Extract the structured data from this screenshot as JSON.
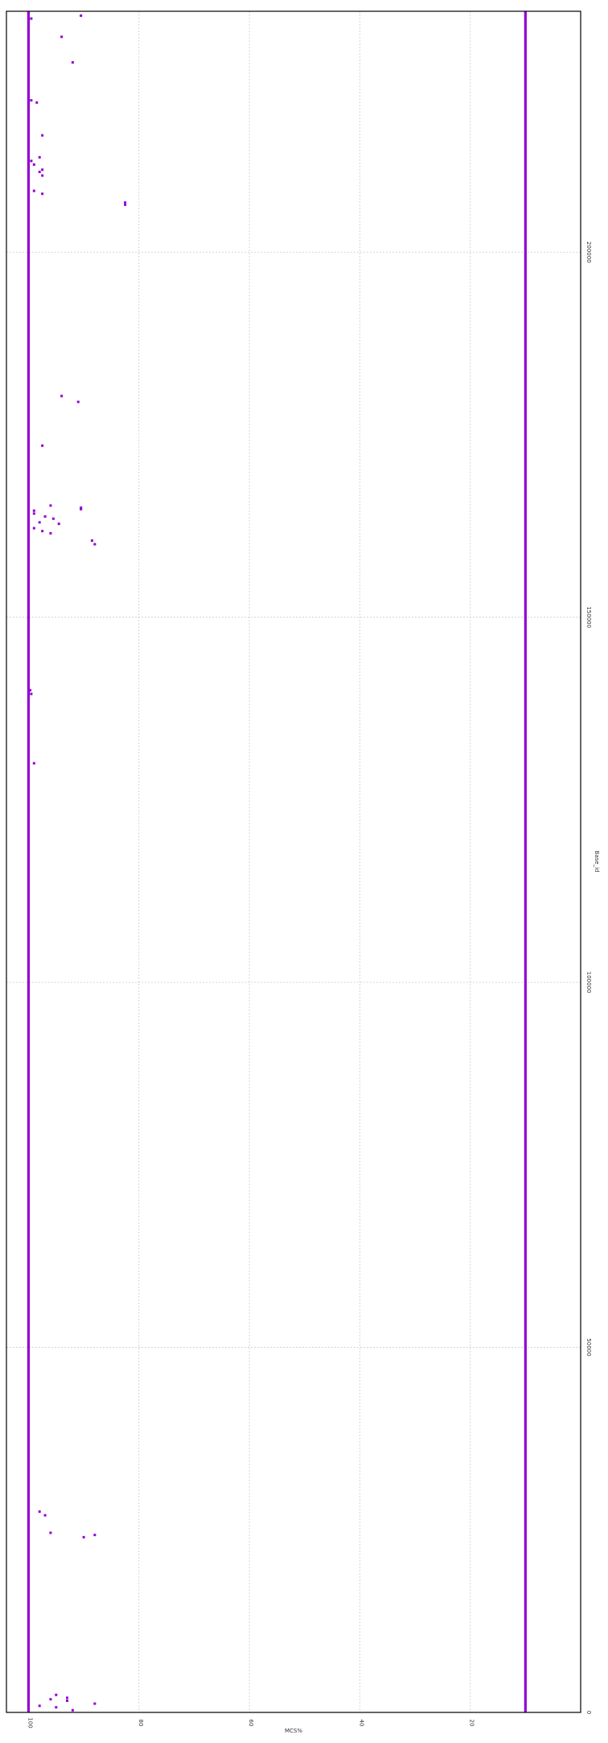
{
  "chart_data": {
    "type": "scatter",
    "orientation": "rotated-90-clockwise",
    "xlabel": "Base_id",
    "ylabel": "MCS%",
    "xlim": [
      0,
      233000
    ],
    "ylim": [
      0,
      104
    ],
    "x_ticks": [
      0,
      50000,
      100000,
      150000,
      200000
    ],
    "x_tick_labels": [
      "0",
      "50000",
      "100000",
      "150000",
      "200000"
    ],
    "y_ticks": [
      100,
      80,
      60,
      40,
      20
    ],
    "y_tick_labels": [
      "100",
      "80",
      "60",
      "40",
      "20"
    ],
    "grid": true,
    "legend": "none",
    "colors": {
      "point": "#9400d3",
      "grid": "#cccccc",
      "frame": "#000000"
    },
    "series": [
      {
        "band_values": [
          100,
          10
        ],
        "band_x_range": [
          0,
          233000
        ],
        "outliers": [
          {
            "x": 300,
            "y": 92
          },
          {
            "x": 700,
            "y": 95
          },
          {
            "x": 900,
            "y": 98
          },
          {
            "x": 1200,
            "y": 88
          },
          {
            "x": 1600,
            "y": 93
          },
          {
            "x": 1800,
            "y": 96
          },
          {
            "x": 2000,
            "y": 93
          },
          {
            "x": 2400,
            "y": 95
          },
          {
            "x": 24000,
            "y": 90
          },
          {
            "x": 24300,
            "y": 88
          },
          {
            "x": 24600,
            "y": 96
          },
          {
            "x": 27000,
            "y": 97
          },
          {
            "x": 27500,
            "y": 98
          },
          {
            "x": 130000,
            "y": 99
          },
          {
            "x": 139500,
            "y": 99.5
          },
          {
            "x": 140000,
            "y": 99.7
          },
          {
            "x": 160000,
            "y": 88
          },
          {
            "x": 160500,
            "y": 88.5
          },
          {
            "x": 161500,
            "y": 96
          },
          {
            "x": 161800,
            "y": 97.5
          },
          {
            "x": 162200,
            "y": 99
          },
          {
            "x": 162800,
            "y": 94.5
          },
          {
            "x": 163000,
            "y": 98
          },
          {
            "x": 163500,
            "y": 95.5
          },
          {
            "x": 163800,
            "y": 97
          },
          {
            "x": 164200,
            "y": 99
          },
          {
            "x": 164600,
            "y": 99
          },
          {
            "x": 164800,
            "y": 90.5
          },
          {
            "x": 165000,
            "y": 90.5
          },
          {
            "x": 165300,
            "y": 96
          },
          {
            "x": 173500,
            "y": 97.5
          },
          {
            "x": 179500,
            "y": 91
          },
          {
            "x": 180300,
            "y": 94
          },
          {
            "x": 206500,
            "y": 82.5
          },
          {
            "x": 206800,
            "y": 82.5
          },
          {
            "x": 208000,
            "y": 97.5
          },
          {
            "x": 208400,
            "y": 99
          },
          {
            "x": 210500,
            "y": 97.5
          },
          {
            "x": 211000,
            "y": 98
          },
          {
            "x": 211300,
            "y": 97.5
          },
          {
            "x": 212000,
            "y": 99
          },
          {
            "x": 212500,
            "y": 99.5
          },
          {
            "x": 213000,
            "y": 98
          },
          {
            "x": 216000,
            "y": 97.5
          },
          {
            "x": 220500,
            "y": 98.5
          },
          {
            "x": 220800,
            "y": 99.5
          },
          {
            "x": 226000,
            "y": 92
          },
          {
            "x": 229500,
            "y": 94
          },
          {
            "x": 232000,
            "y": 99.5
          },
          {
            "x": 232400,
            "y": 90.5
          },
          {
            "x": 232700,
            "y": 100
          }
        ]
      }
    ]
  }
}
